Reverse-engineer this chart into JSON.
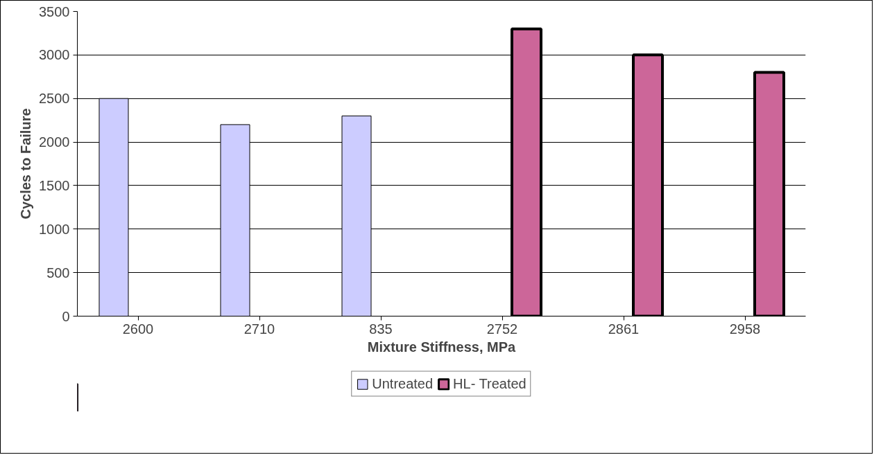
{
  "chart_data": {
    "type": "bar",
    "xlabel": "Mixture Stiffness, MPa",
    "ylabel": "Cycles to Failure",
    "categories": [
      "2600",
      "2710",
      "835",
      "2752",
      "2861",
      "2958"
    ],
    "series": [
      {
        "name": "Untreated",
        "color": "#ccccff",
        "values": [
          2500,
          2200,
          2300,
          null,
          null,
          null
        ]
      },
      {
        "name": "HL- Treated",
        "color": "#cc6699",
        "values": [
          null,
          null,
          null,
          3300,
          3000,
          2800
        ]
      }
    ],
    "ylim": [
      0,
      3500
    ],
    "yticks": [
      0,
      500,
      1000,
      1500,
      2000,
      2500,
      3000,
      3500
    ],
    "grid": "y",
    "legend": "bottom"
  }
}
